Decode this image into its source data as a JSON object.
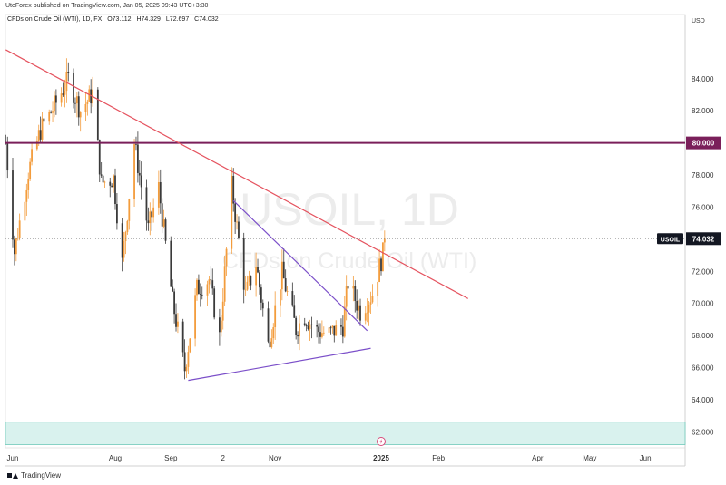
{
  "header": {
    "published": "UteForex published on TradingView.com, Jan 05, 2025 09:43 UTC+3:30",
    "symbol_title": "CFDs on Crude Oil (WTI), 1D, FX",
    "open": "O73.112",
    "high": "H74.329",
    "low": "L72.697",
    "close": "C74.032"
  },
  "axis": {
    "currency": "USD"
  },
  "watermark": {
    "symbol": "USOIL, 1D",
    "description": "CFDs on Crude Oil (WTI)"
  },
  "footer": {
    "brand": "TradingView"
  },
  "colors": {
    "up": "#f39c3c",
    "down": "#3a3a3a",
    "trendline_red": "#e5535f",
    "triangle_purple": "#7b4fc9",
    "level_80": "#7a1f5a",
    "zone": "#d9f2ee",
    "zone_border": "#6cc7b8",
    "last_price_tag": "#131722"
  },
  "chart_data": {
    "type": "candlestick",
    "symbol": "USOIL",
    "timeframe": "1D",
    "ylim": [
      61,
      88
    ],
    "yticks": [
      62,
      64,
      66,
      68,
      70,
      72,
      74,
      76,
      78,
      80,
      82,
      84
    ],
    "ytick_labels": [
      "62.000",
      "64.000",
      "66.000",
      "68.000",
      "70.000",
      "72.000",
      "74.000",
      "76.000",
      "78.000",
      "80.000",
      "82.000",
      "84.000"
    ],
    "xlabels": [
      {
        "label": "Jun",
        "date": "2024-06-03"
      },
      {
        "label": "Aug",
        "date": "2024-08-01"
      },
      {
        "label": "Sep",
        "date": "2024-09-02"
      },
      {
        "label": "2",
        "date": "2024-10-02"
      },
      {
        "label": "Nov",
        "date": "2024-11-01"
      },
      {
        "label": "2025",
        "date": "2025-01-01"
      },
      {
        "label": "Feb",
        "date": "2025-02-03"
      },
      {
        "label": "Apr",
        "date": "2025-04-01"
      },
      {
        "label": "May",
        "date": "2025-05-01"
      },
      {
        "label": "Jun",
        "date": "2025-06-02"
      }
    ],
    "price_path": [
      [
        "2024-05-30",
        80.0
      ],
      [
        "2024-06-04",
        73.2
      ],
      [
        "2024-06-12",
        78.2
      ],
      [
        "2024-06-19",
        80.8
      ],
      [
        "2024-06-28",
        82.5
      ],
      [
        "2024-07-05",
        84.0
      ],
      [
        "2024-07-12",
        82.0
      ],
      [
        "2024-07-19",
        83.1
      ],
      [
        "2024-07-24",
        77.5
      ],
      [
        "2024-07-31",
        77.8
      ],
      [
        "2024-08-05",
        72.5
      ],
      [
        "2024-08-12",
        80.0
      ],
      [
        "2024-08-20",
        74.6
      ],
      [
        "2024-08-26",
        77.2
      ],
      [
        "2024-09-03",
        70.1
      ],
      [
        "2024-09-10",
        65.9
      ],
      [
        "2024-09-17",
        70.9
      ],
      [
        "2024-09-24",
        71.5
      ],
      [
        "2024-09-30",
        67.9
      ],
      [
        "2024-10-07",
        77.3
      ],
      [
        "2024-10-15",
        70.5
      ],
      [
        "2024-10-21",
        72.5
      ],
      [
        "2024-10-28",
        67.4
      ],
      [
        "2024-11-05",
        71.9
      ],
      [
        "2024-11-13",
        68.4
      ],
      [
        "2024-11-18",
        69.2
      ],
      [
        "2024-11-25",
        68.3
      ],
      [
        "2024-12-02",
        68.1
      ],
      [
        "2024-12-10",
        68.6
      ],
      [
        "2024-12-13",
        71.3
      ],
      [
        "2024-12-20",
        69.5
      ],
      [
        "2024-12-27",
        70.6
      ],
      [
        "2025-01-02",
        73.1
      ],
      [
        "2025-01-03",
        74.032
      ]
    ],
    "last_price": {
      "label": "USOIL",
      "value": "74.032",
      "numeric": 74.032
    },
    "horizontal_level": {
      "value": 80.0,
      "label": "80.000"
    },
    "support_zone": [
      61.2,
      62.6
    ],
    "trendlines": [
      {
        "name": "descending-resistance",
        "from": [
          "2024-05-30",
          85.8
        ],
        "to": [
          "2025-02-20",
          70.3
        ]
      },
      {
        "name": "triangle-upper",
        "from": [
          "2024-10-08",
          76.4
        ],
        "to": [
          "2024-12-24",
          68.3
        ]
      },
      {
        "name": "triangle-lower",
        "from": [
          "2024-09-12",
          65.2
        ],
        "to": [
          "2024-12-26",
          67.2
        ]
      }
    ]
  }
}
